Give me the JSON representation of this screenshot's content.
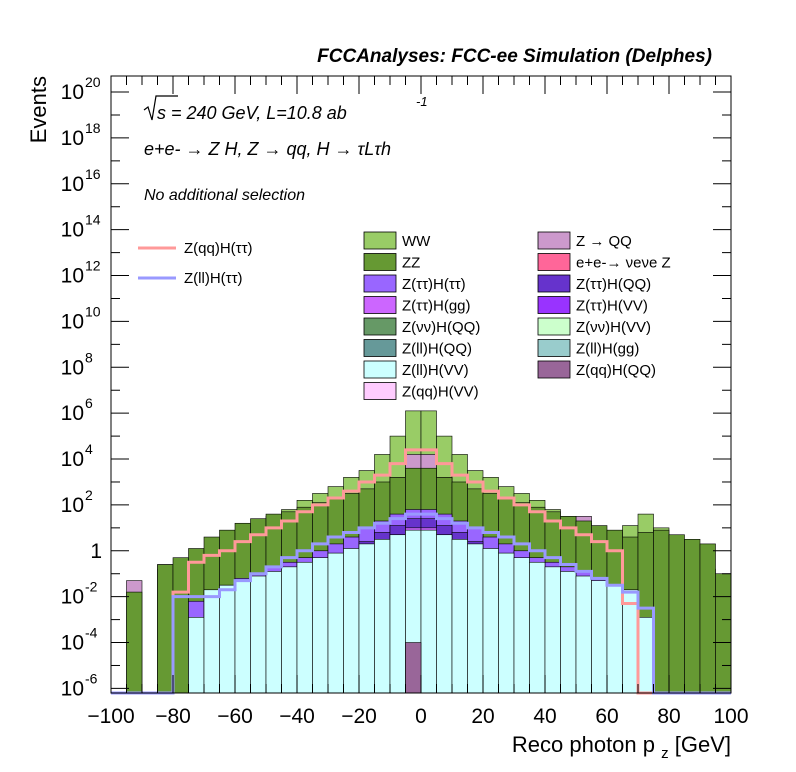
{
  "chart_data": {
    "type": "area",
    "title": "FCCAnalyses: FCC-ee Simulation (Delphes)",
    "xlabel_main": "Reco photon p",
    "xlabel_sub": "z",
    "xlabel_unit": " [GeV]",
    "ylabel": "Events",
    "log_y": true,
    "xlim": [
      -100,
      100
    ],
    "ylim_exp": [
      -6.2,
      20.7
    ],
    "x_ticks": [
      -100,
      -80,
      -60,
      -40,
      -20,
      0,
      20,
      40,
      60,
      80,
      100
    ],
    "y_ticks": [
      {
        "exp": 20,
        "label": "20"
      },
      {
        "exp": 18,
        "label": "18"
      },
      {
        "exp": 16,
        "label": "16"
      },
      {
        "exp": 14,
        "label": "14"
      },
      {
        "exp": 12,
        "label": "12"
      },
      {
        "exp": 10,
        "label": "10"
      },
      {
        "exp": 8,
        "label": "8"
      },
      {
        "exp": 6,
        "label": "6"
      },
      {
        "exp": 4,
        "label": "4"
      },
      {
        "exp": 2,
        "label": "2"
      },
      {
        "exp": 0,
        "label": "1"
      },
      {
        "exp": -2,
        "label": "-2"
      },
      {
        "exp": -4,
        "label": "-4"
      },
      {
        "exp": -6,
        "label": "-6"
      }
    ],
    "annotations": {
      "energy": "s = 240 GeV, L=10.8 ab",
      "energy_exp": "-1",
      "process": "e+e- → Z H, Z → qq, H → τLτh",
      "selection": "No additional selection"
    },
    "bin_edges": [
      -100,
      -95,
      -90,
      -85,
      -80,
      -75,
      -70,
      -65,
      -60,
      -55,
      -50,
      -45,
      -40,
      -35,
      -30,
      -25,
      -20,
      -15,
      -10,
      -5,
      0,
      5,
      10,
      15,
      20,
      25,
      30,
      35,
      40,
      45,
      50,
      55,
      60,
      65,
      70,
      75,
      80,
      85,
      90,
      95,
      100
    ],
    "stack": [
      {
        "name": "WW",
        "color": "#99CC66",
        "log10": [
          -6.2,
          -6.2,
          -6.2,
          -0.8,
          -0.8,
          -0.4,
          0.0,
          0.2,
          0.8,
          1.2,
          1.5,
          1.8,
          2.2,
          2.5,
          2.8,
          3.2,
          3.5,
          4.2,
          5.0,
          6.1,
          6.1,
          5.0,
          4.2,
          3.5,
          3.2,
          2.8,
          2.5,
          2.2,
          1.8,
          1.5,
          1.2,
          0.9,
          0.8,
          1.1,
          1.6,
          1.0,
          -0.4,
          -0.6,
          -0.8,
          -6.2
        ]
      },
      {
        "name": "Z → QQ",
        "color": "#CC99CC",
        "log10": [
          -6.2,
          -1.3,
          -6.2,
          -0.6,
          -0.9,
          -1.2,
          -1.0,
          -0.5,
          -0.7,
          -0.7,
          -1.0,
          -0.3,
          -0.5,
          -0.2,
          0.0,
          0.5,
          1.3,
          2.0,
          3.2,
          4.2,
          4.2,
          3.2,
          2.0,
          1.3,
          0.5,
          0.0,
          -0.2,
          -0.2,
          0.0,
          0.8,
          1.5,
          0.7,
          0.8,
          -1.5,
          -1.0,
          -1.5,
          -1.6,
          -1.6,
          -1.4,
          -6.2
        ]
      },
      {
        "name": "ZZ",
        "color": "#669933",
        "log10": [
          -6.2,
          -1.8,
          -6.2,
          -0.6,
          -0.3,
          0.1,
          0.6,
          0.9,
          1.2,
          1.4,
          1.6,
          1.7,
          1.9,
          2.1,
          2.3,
          2.5,
          2.7,
          3.0,
          3.2,
          3.6,
          3.6,
          3.2,
          3.0,
          2.7,
          2.5,
          2.3,
          2.1,
          1.9,
          1.7,
          1.5,
          1.3,
          1.1,
          0.9,
          0.6,
          0.8,
          0.9,
          0.7,
          0.5,
          0.3,
          -1.0
        ]
      },
      {
        "name": "e+e-→ νeνe Z",
        "color": "#FF6699",
        "log10": [
          -6.2,
          -6.2,
          -6.2,
          -6.2,
          -6.2,
          -6.2,
          -6.2,
          -6.2,
          -6.2,
          -6.2,
          -6.2,
          -6.2,
          -1.9,
          -6.2,
          -6.2,
          -1.9,
          -6.2,
          -1.9,
          0.5,
          0.7,
          0.7,
          0.5,
          -1.9,
          -6.2,
          -6.2,
          -1.9,
          -6.2,
          -6.2,
          -1.9,
          -6.2,
          -6.2,
          -6.2,
          -6.2,
          -6.2,
          -6.2,
          -6.2,
          -6.2,
          -6.2,
          -6.2,
          -6.2
        ]
      },
      {
        "name": "Z(ττ)H(ττ)",
        "color": "#9966FF",
        "log10": [
          -6.2,
          -6.2,
          -6.2,
          -6.2,
          -6.2,
          -2.2,
          -2.0,
          -1.5,
          -1.2,
          -1.0,
          -0.7,
          -0.5,
          -0.3,
          0.0,
          0.3,
          0.6,
          1.0,
          1.3,
          1.6,
          1.8,
          1.8,
          1.6,
          1.3,
          1.0,
          0.6,
          0.3,
          0.0,
          -0.3,
          -0.5,
          -0.7,
          -0.9,
          -1.2,
          -1.7,
          -2.0,
          -6.2,
          -6.2,
          -6.2,
          -6.2,
          -6.2,
          -6.2
        ]
      },
      {
        "name": "Z(ττ)H(QQ)",
        "color": "#6633CC",
        "log10": [
          -6.2,
          -6.2,
          -6.2,
          -6.2,
          -6.2,
          -6.2,
          -6.2,
          -6.2,
          -2.5,
          -2.0,
          -1.7,
          -1.3,
          -1.0,
          -0.6,
          -0.3,
          0.0,
          0.4,
          0.8,
          1.1,
          1.4,
          1.4,
          1.1,
          0.8,
          0.4,
          0.0,
          -0.3,
          -0.6,
          -1.0,
          -1.3,
          -1.7,
          -2.0,
          -2.4,
          -6.2,
          -6.2,
          -6.2,
          -6.2,
          -6.2,
          -6.2,
          -6.2,
          -6.2
        ]
      },
      {
        "name": "Z(ττ)H(gg)",
        "color": "#CC66FF",
        "log10": [
          -6.2,
          -6.2,
          -6.2,
          -6.2,
          -6.2,
          -6.2,
          -6.2,
          -6.2,
          -6.2,
          -6.2,
          -2.5,
          -2.0,
          -1.6,
          -1.2,
          -0.8,
          -0.5,
          -0.1,
          0.3,
          0.7,
          1.0,
          1.0,
          0.7,
          0.3,
          -0.1,
          -0.5,
          -0.8,
          -1.2,
          -1.6,
          -2.0,
          -2.5,
          -6.2,
          -6.2,
          -6.2,
          -6.2,
          -6.2,
          -6.2,
          -6.2,
          -6.2,
          -6.2,
          -6.2
        ]
      },
      {
        "name": "Z(ττ)H(VV)",
        "color": "#9933FF",
        "log10": [
          -6.2,
          -6.2,
          -6.2,
          -6.2,
          -6.2,
          -6.2,
          -6.2,
          -6.2,
          -6.2,
          -6.2,
          -2.6,
          -2.2,
          -1.8,
          -1.4,
          -1.0,
          -0.6,
          -0.2,
          0.2,
          0.5,
          0.8,
          0.8,
          0.5,
          0.2,
          -0.2,
          -0.6,
          -1.0,
          -1.4,
          -1.8,
          -2.2,
          -2.6,
          -6.2,
          -6.2,
          -6.2,
          -6.2,
          -6.2,
          -6.2,
          -6.2,
          -6.2,
          -6.2,
          -6.2
        ]
      },
      {
        "name": "Z(νν)H(QQ)",
        "color": "#669966",
        "log10": [
          -6.2,
          -6.2,
          -6.2,
          -6.2,
          -6.2,
          -6.2,
          -6.2,
          -6.2,
          -6.2,
          -6.2,
          -6.2,
          -6.2,
          -6.2,
          -6.2,
          -6.2,
          -6.2,
          -1.0,
          -0.2,
          0.3,
          0.6,
          0.6,
          0.3,
          -0.2,
          -1.0,
          -6.2,
          -6.2,
          -6.2,
          -6.2,
          -6.2,
          -6.2,
          -6.2,
          -6.2,
          -6.2,
          -6.2,
          -6.2,
          -6.2,
          -6.2,
          -6.2,
          -6.2,
          -6.2
        ]
      },
      {
        "name": "Z(νν)H(VV)",
        "color": "#CCFFCC",
        "log10": [
          -6.2,
          -6.2,
          -6.2,
          -6.2,
          -6.2,
          -6.2,
          -6.2,
          -6.2,
          -6.2,
          -6.2,
          -6.2,
          -6.2,
          -6.2,
          -6.2,
          -6.2,
          -6.2,
          -1.3,
          -0.6,
          -0.1,
          0.2,
          0.2,
          -0.1,
          -0.6,
          -1.3,
          -6.2,
          -6.2,
          -6.2,
          -6.2,
          -6.2,
          -6.2,
          -6.2,
          -6.2,
          -6.2,
          -6.2,
          -6.2,
          -6.2,
          -6.2,
          -6.2,
          -6.2,
          -6.2
        ]
      },
      {
        "name": "Z(ll)H(QQ)",
        "color": "#669999",
        "log10": [
          -6.2,
          -6.2,
          -6.2,
          -6.2,
          -6.2,
          -6.2,
          -6.2,
          -6.2,
          -6.2,
          -6.2,
          -2.0,
          -1.6,
          -1.3,
          -1.0,
          -0.7,
          -0.4,
          -0.1,
          0.2,
          0.4,
          0.6,
          0.6,
          0.4,
          0.2,
          -0.1,
          -0.4,
          -0.7,
          -1.0,
          -1.3,
          -1.6,
          -2.0,
          -6.2,
          -6.2,
          -6.2,
          -6.2,
          -6.2,
          -6.2,
          -6.2,
          -6.2,
          -6.2,
          -6.2
        ]
      },
      {
        "name": "Z(ll)H(gg)",
        "color": "#99CCCC",
        "log10": [
          -6.2,
          -6.2,
          -6.2,
          -6.2,
          -6.2,
          -6.2,
          -6.2,
          -6.2,
          -6.2,
          -6.2,
          -6.2,
          -2.5,
          -2.0,
          -1.6,
          -1.2,
          -0.8,
          -0.5,
          -0.2,
          0.1,
          0.3,
          0.3,
          0.1,
          -0.2,
          -0.5,
          -0.8,
          -1.2,
          -1.6,
          -2.0,
          -2.5,
          -2.4,
          -2.3,
          -2.3,
          -2.4,
          -3.4,
          -6.2,
          -6.2,
          -6.2,
          -6.2,
          -6.2,
          -6.2
        ]
      },
      {
        "name": "Z(ll)H(VV)",
        "color": "#CCFFFF",
        "log10": [
          -6.2,
          -6.2,
          -6.2,
          -6.2,
          -6.2,
          -2.9,
          -1.7,
          -1.5,
          -1.3,
          -1.1,
          -0.9,
          -0.7,
          -0.5,
          -0.3,
          -0.1,
          0.1,
          0.3,
          0.5,
          0.7,
          0.9,
          0.9,
          0.7,
          0.5,
          0.3,
          0.1,
          -0.1,
          -0.3,
          -0.5,
          -0.7,
          -0.9,
          -1.1,
          -1.3,
          -1.5,
          -1.7,
          -2.9,
          -6.2,
          -6.2,
          -6.2,
          -6.2,
          -6.2
        ]
      },
      {
        "name": "Z(qq)H(QQ)",
        "color": "#996699",
        "log10": [
          -6.2,
          -6.2,
          -6.2,
          -6.2,
          -6.2,
          -6.2,
          -6.2,
          -6.2,
          -6.2,
          -6.2,
          -6.2,
          -6.2,
          -6.2,
          -6.2,
          -6.2,
          -6.2,
          -6.2,
          -6.2,
          -6.2,
          -4.0,
          -6.2,
          -6.2,
          -6.2,
          -6.2,
          -6.2,
          -6.2,
          -6.2,
          -6.2,
          -6.2,
          -6.2,
          -6.2,
          -6.2,
          -6.2,
          -6.2,
          -6.2,
          -6.2,
          -6.2,
          -6.2,
          -6.2,
          -6.2
        ]
      },
      {
        "name": "Z(qq)H(VV)",
        "color": "#FFCCFF",
        "log10": [
          -6.2,
          -6.2,
          -6.2,
          -6.2,
          -6.2,
          -6.2,
          -6.2,
          -6.2,
          -6.2,
          -6.2,
          -6.2,
          -6.2,
          -6.2,
          -6.2,
          -6.2,
          -6.2,
          -6.2,
          -6.2,
          -6.2,
          -6.2,
          -6.2,
          -6.2,
          -6.2,
          -6.2,
          -6.2,
          -6.2,
          -6.2,
          -6.2,
          -6.2,
          -6.2,
          -6.2,
          -6.2,
          -6.2,
          -6.2,
          -6.2,
          -6.2,
          -6.2,
          -6.2,
          -6.2,
          -6.2
        ]
      }
    ],
    "signals": [
      {
        "name": "Z(qq)H(ττ)",
        "color": "#FF9999",
        "log10": [
          -6.2,
          -6.2,
          -6.2,
          -6.2,
          -1.8,
          -0.5,
          -0.2,
          0.0,
          0.4,
          0.7,
          1.0,
          1.3,
          1.7,
          2.0,
          2.3,
          2.6,
          3.0,
          3.3,
          3.8,
          4.4,
          4.4,
          3.8,
          3.3,
          3.0,
          2.6,
          2.3,
          2.0,
          1.7,
          1.3,
          1.0,
          0.7,
          0.4,
          0.0,
          -2.3,
          -6.2,
          -6.2,
          -6.2,
          -6.2,
          -6.2,
          -6.2
        ]
      },
      {
        "name": "Z(ll)H(ττ)",
        "color": "#9999FF",
        "log10": [
          -6.2,
          -6.2,
          -6.2,
          -6.2,
          -2.0,
          -2.0,
          -2.0,
          -1.7,
          -1.3,
          -1.0,
          -0.7,
          -0.3,
          0.0,
          0.3,
          0.6,
          0.8,
          1.0,
          1.2,
          1.4,
          1.6,
          1.6,
          1.4,
          1.2,
          1.0,
          0.8,
          0.6,
          0.3,
          0.0,
          -0.3,
          -0.6,
          -0.9,
          -1.2,
          -1.5,
          -1.8,
          -2.5,
          -6.2,
          -6.2,
          -6.2,
          -6.2,
          -6.2
        ]
      }
    ]
  }
}
